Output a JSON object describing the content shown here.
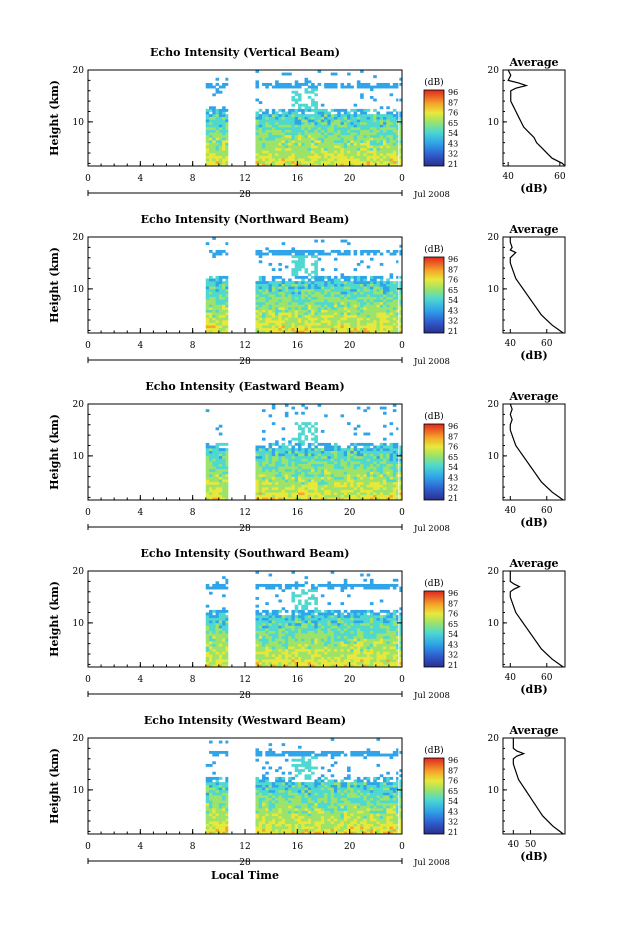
{
  "footer": {
    "xlabel": "Local Time"
  },
  "chart_data": [
    {
      "type": "heatmap",
      "title": "Echo Intensity (Vertical Beam)",
      "ylabel": "Height (km)",
      "yticks": [
        "20",
        "10"
      ],
      "ylim": [
        1.5,
        20
      ],
      "xticks": [
        "0",
        "4",
        "8",
        "12",
        "16",
        "20",
        "0"
      ],
      "xlim": [
        0,
        24
      ],
      "date_day": "28",
      "date_label": "Jul 2008",
      "colorbar": {
        "unit": "(dB)",
        "ticks": [
          "96",
          "87",
          "76",
          "65",
          "54",
          "43",
          "32",
          "21"
        ]
      },
      "data_segments": [
        [
          9.0,
          10.7
        ],
        [
          12.8,
          23.7
        ],
        [
          23.8,
          24.0
        ]
      ],
      "profile": {
        "title": "Average",
        "xlabel": "(dB)",
        "xticks": [
          "40",
          "60"
        ],
        "xlim": [
          38,
          62
        ],
        "yticks": [
          "20",
          "10"
        ],
        "heights": [
          1.5,
          2,
          3,
          4,
          5,
          6,
          7,
          8,
          9,
          10,
          11,
          12,
          13,
          14,
          15,
          16,
          16.5,
          17,
          17.5,
          18,
          19,
          20
        ],
        "values": [
          62,
          61,
          57,
          55,
          53,
          51,
          50,
          48,
          46,
          45,
          44,
          43,
          42,
          41,
          41,
          41,
          43,
          47,
          44,
          40,
          41,
          40
        ]
      }
    },
    {
      "type": "heatmap",
      "title": "Echo Intensity (Northward Beam)",
      "ylabel": "Height (km)",
      "yticks": [
        "20",
        "10"
      ],
      "ylim": [
        1.5,
        20
      ],
      "xticks": [
        "0",
        "4",
        "8",
        "12",
        "16",
        "20",
        "0"
      ],
      "xlim": [
        0,
        24
      ],
      "date_day": "28",
      "date_label": "Jul 2008",
      "colorbar": {
        "unit": "(dB)",
        "ticks": [
          "96",
          "87",
          "76",
          "65",
          "54",
          "43",
          "32",
          "21"
        ]
      },
      "data_segments": [
        [
          9.0,
          10.7
        ],
        [
          12.8,
          23.7
        ],
        [
          23.8,
          24.0
        ]
      ],
      "profile": {
        "title": "Average",
        "xlabel": "(dB)",
        "xticks": [
          "40",
          "60"
        ],
        "xlim": [
          36,
          70
        ],
        "yticks": [
          "20",
          "10"
        ],
        "heights": [
          1.5,
          2,
          3,
          4,
          5,
          6,
          7,
          8,
          9,
          10,
          11,
          12,
          13,
          14,
          15,
          16,
          17,
          17.5,
          18,
          19,
          20
        ],
        "values": [
          69,
          67,
          63,
          60,
          57,
          55,
          53,
          51,
          49,
          47,
          45,
          43,
          42,
          41,
          40,
          40,
          43,
          40,
          41,
          40,
          40
        ]
      }
    },
    {
      "type": "heatmap",
      "title": "Echo Intensity (Eastward Beam)",
      "ylabel": "Height (km)",
      "yticks": [
        "20",
        "10"
      ],
      "ylim": [
        1.5,
        20
      ],
      "xticks": [
        "0",
        "4",
        "8",
        "12",
        "16",
        "20",
        "0"
      ],
      "xlim": [
        0,
        24
      ],
      "date_day": "28",
      "date_label": "Jul 2008",
      "colorbar": {
        "unit": "(dB)",
        "ticks": [
          "96",
          "87",
          "76",
          "65",
          "54",
          "43",
          "32",
          "21"
        ]
      },
      "data_segments": [
        [
          9.0,
          10.7
        ],
        [
          12.8,
          23.7
        ],
        [
          23.8,
          24.0
        ]
      ],
      "profile": {
        "title": "Average",
        "xlabel": "(dB)",
        "xticks": [
          "40",
          "60"
        ],
        "xlim": [
          36,
          70
        ],
        "yticks": [
          "20",
          "10"
        ],
        "heights": [
          1.5,
          2,
          3,
          4,
          5,
          6,
          7,
          8,
          9,
          10,
          11,
          12,
          13,
          14,
          15,
          16,
          17,
          18,
          19,
          20
        ],
        "values": [
          69,
          67,
          63,
          60,
          57,
          55,
          53,
          51,
          49,
          47,
          45,
          43,
          42,
          41,
          40,
          40,
          41,
          40,
          41,
          40
        ]
      }
    },
    {
      "type": "heatmap",
      "title": "Echo Intensity (Southward Beam)",
      "ylabel": "Height (km)",
      "yticks": [
        "20",
        "10"
      ],
      "ylim": [
        1.5,
        20
      ],
      "xticks": [
        "0",
        "4",
        "8",
        "12",
        "16",
        "20",
        "0"
      ],
      "xlim": [
        0,
        24
      ],
      "date_day": "28",
      "date_label": "Jul 2008",
      "colorbar": {
        "unit": "(dB)",
        "ticks": [
          "96",
          "87",
          "76",
          "65",
          "54",
          "43",
          "32",
          "21"
        ]
      },
      "data_segments": [
        [
          9.0,
          10.7
        ],
        [
          12.8,
          23.7
        ],
        [
          23.8,
          24.0
        ]
      ],
      "profile": {
        "title": "Average",
        "xlabel": "(dB)",
        "xticks": [
          "40",
          "60"
        ],
        "xlim": [
          36,
          70
        ],
        "yticks": [
          "20",
          "10"
        ],
        "heights": [
          1.5,
          2,
          3,
          4,
          5,
          6,
          7,
          8,
          9,
          10,
          11,
          12,
          13,
          14,
          15,
          16,
          16.5,
          17,
          17.5,
          18,
          19,
          20
        ],
        "values": [
          69,
          67,
          63,
          60,
          57,
          55,
          53,
          51,
          49,
          47,
          45,
          43,
          42,
          41,
          40,
          40,
          42,
          45,
          42,
          40,
          40,
          40
        ]
      }
    },
    {
      "type": "heatmap",
      "title": "Echo Intensity (Westward Beam)",
      "ylabel": "Height (km)",
      "yticks": [
        "20",
        "10"
      ],
      "ylim": [
        1.5,
        20
      ],
      "xticks": [
        "0",
        "4",
        "8",
        "12",
        "16",
        "20",
        "0"
      ],
      "xlim": [
        0,
        24
      ],
      "date_day": "28",
      "date_label": "Jul 2008",
      "colorbar": {
        "unit": "(dB)",
        "ticks": [
          "96",
          "87",
          "76",
          "65",
          "54",
          "43",
          "32",
          "21"
        ]
      },
      "data_segments": [
        [
          9.0,
          10.7
        ],
        [
          12.8,
          23.7
        ],
        [
          23.8,
          24.0
        ]
      ],
      "profile": {
        "title": "Average",
        "xlabel": "(dB)",
        "xticks": [
          "40",
          "50"
        ],
        "xlim": [
          34,
          70
        ],
        "yticks": [
          "20",
          "10"
        ],
        "heights": [
          1.5,
          2,
          3,
          4,
          5,
          6,
          7,
          8,
          9,
          10,
          11,
          12,
          13,
          14,
          15,
          16,
          16.5,
          17,
          17.5,
          18,
          19,
          20
        ],
        "values": [
          69,
          67,
          63,
          60,
          57,
          55,
          53,
          51,
          49,
          47,
          45,
          43,
          42,
          41,
          40,
          40,
          42,
          46,
          42,
          40,
          40,
          40
        ]
      }
    }
  ]
}
